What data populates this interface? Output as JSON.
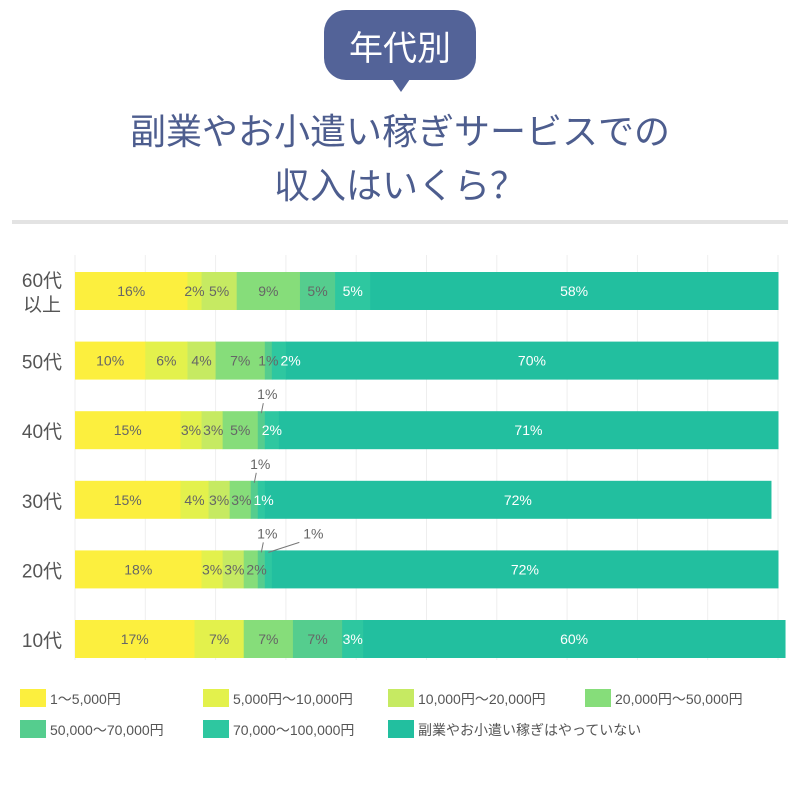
{
  "badge": "年代別",
  "title_line1": "副業やお小遣い稼ぎサービスでの",
  "title_line2": "収入はいくら？",
  "chart_data": {
    "type": "bar",
    "orientation": "horizontal",
    "stacked": true,
    "xlim": [
      0,
      100
    ],
    "grid": true,
    "legend_position": "bottom",
    "categories": [
      [
        "60代",
        "以上"
      ],
      [
        "50代"
      ],
      [
        "40代"
      ],
      [
        "30代"
      ],
      [
        "20代"
      ],
      [
        "10代"
      ]
    ],
    "series": [
      {
        "name": "1〜5,000円",
        "color": "#fcef3e",
        "values": [
          16,
          10,
          15,
          15,
          18,
          17
        ]
      },
      {
        "name": "5,000円〜10,000円",
        "color": "#e3f14c",
        "values": [
          2,
          6,
          3,
          4,
          3,
          7
        ]
      },
      {
        "name": "10,000円〜20,000円",
        "color": "#c6ea62",
        "values": [
          5,
          4,
          3,
          3,
          3,
          0
        ]
      },
      {
        "name": "20,000円〜50,000円",
        "color": "#86dd7a",
        "values": [
          9,
          7,
          5,
          3,
          2,
          7
        ]
      },
      {
        "name": "50,000〜70,000円",
        "color": "#55cd8e",
        "values": [
          5,
          1,
          1,
          1,
          1,
          7
        ]
      },
      {
        "name": "70,000〜100,000円",
        "color": "#2ec7a0",
        "values": [
          5,
          2,
          2,
          1,
          1,
          3
        ]
      },
      {
        "name": "副業やお小遣い稼ぎはやっていない",
        "color": "#22bf9f",
        "values": [
          58,
          70,
          71,
          72,
          72,
          60
        ]
      }
    ],
    "value_suffix": "%",
    "callouts": [
      [],
      [],
      [
        4
      ],
      [
        4
      ],
      [
        4,
        5
      ],
      []
    ]
  }
}
